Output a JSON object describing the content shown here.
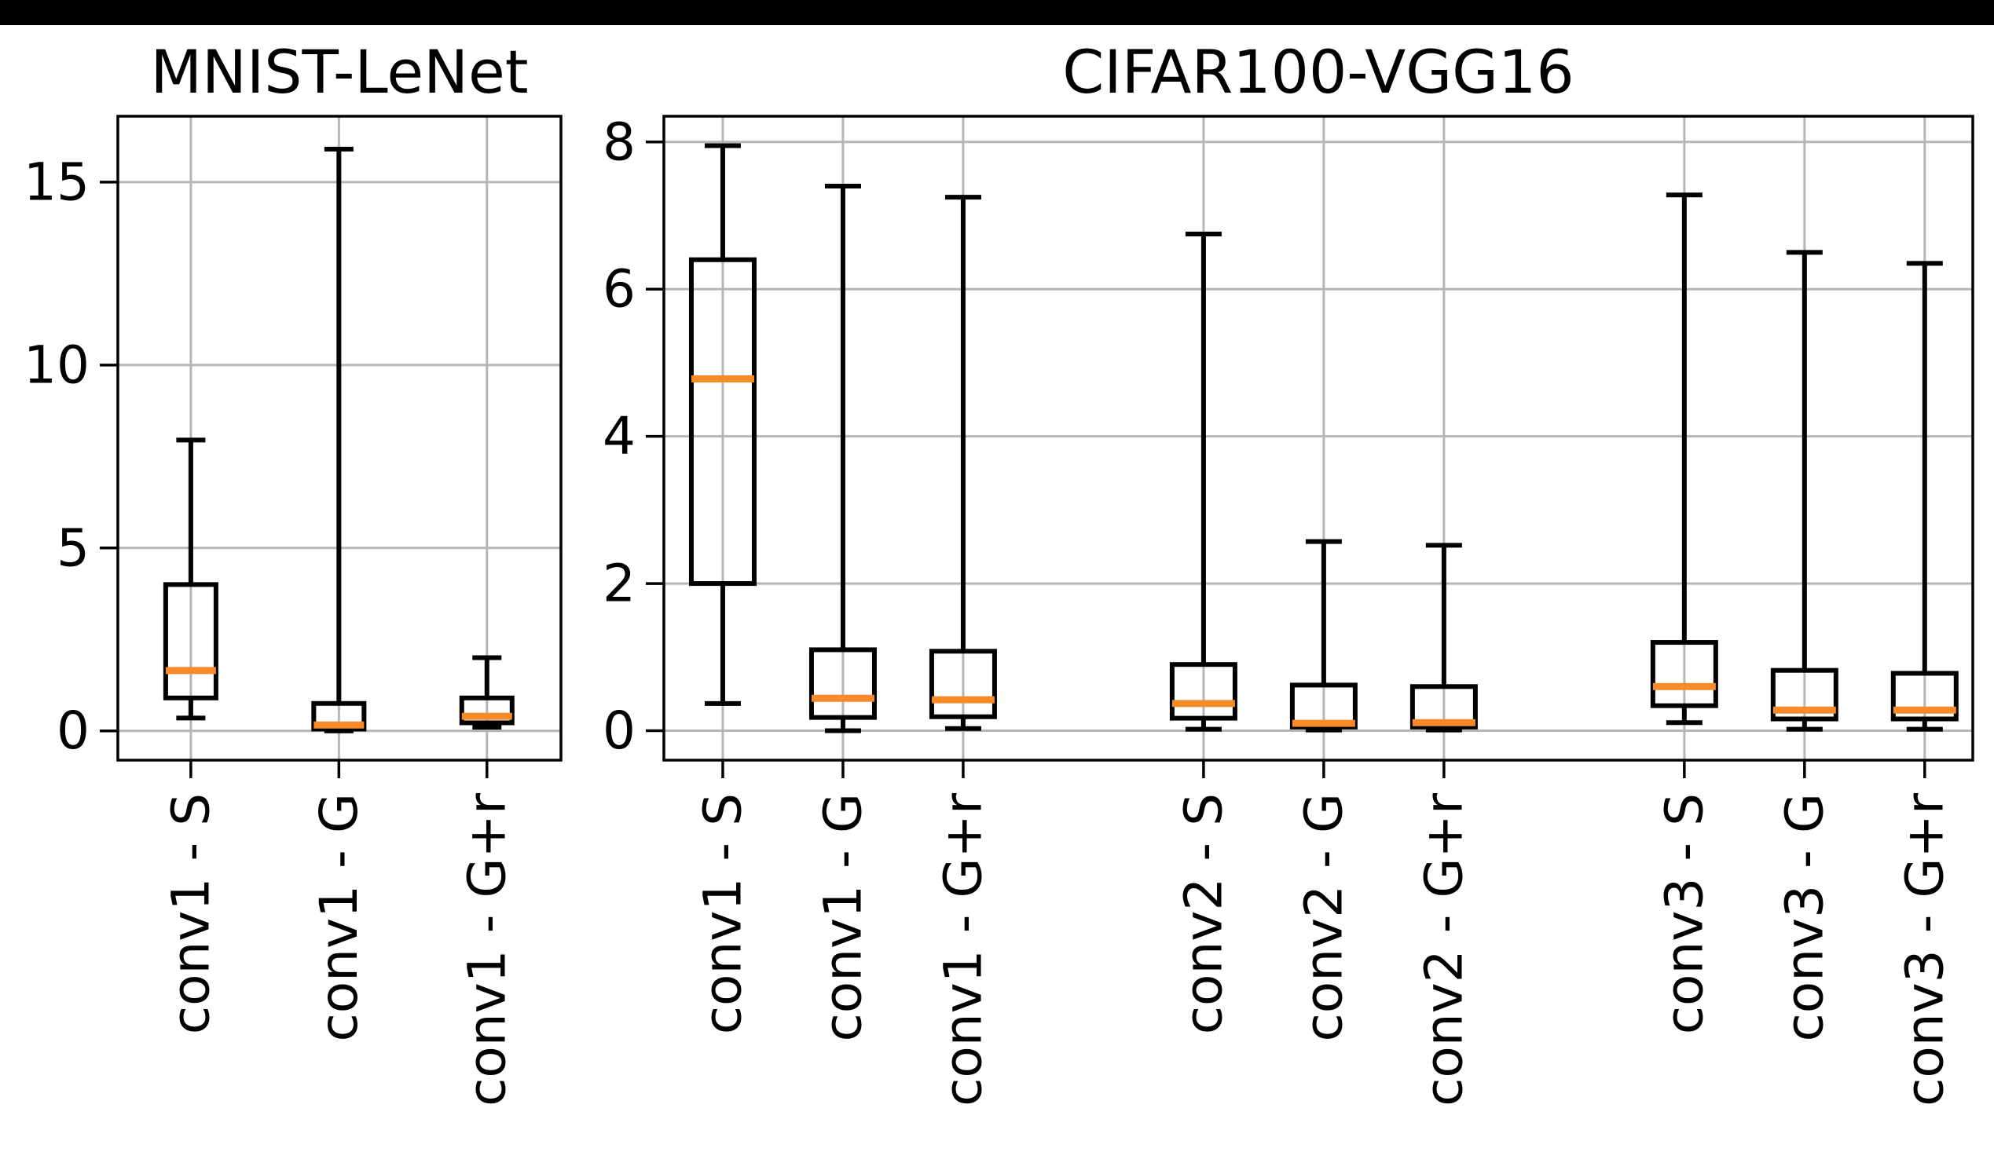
{
  "page": {
    "background": "#ffffff",
    "top_bar_color": "#000000"
  },
  "styles": {
    "grid_color": "#b6b6b6",
    "axis_color": "#000000",
    "box_color": "#000000",
    "median_color": "#f78b29",
    "text_color": "#000000"
  },
  "chart_data": [
    {
      "type": "box",
      "title": "MNIST-LeNet",
      "xlabel": "",
      "ylabel": "",
      "grid": true,
      "legend": "none",
      "yticks": [
        0,
        5,
        10,
        15
      ],
      "ylim": [
        -0.8,
        16.8
      ],
      "xlim": [
        0.507,
        3.5
      ],
      "positions": [
        1,
        2,
        3
      ],
      "categories": [
        "conv1 - S",
        "conv1 - G",
        "conv1 - G+r"
      ],
      "series": [
        {
          "label": "conv1 - S",
          "whislo": 0.35,
          "q1": 0.9,
          "med": 1.65,
          "q3": 4.0,
          "whishi": 7.95
        },
        {
          "label": "conv1 - G",
          "whislo": 0.0,
          "q1": 0.05,
          "med": 0.16,
          "q3": 0.75,
          "whishi": 15.9
        },
        {
          "label": "conv1 - G+r",
          "whislo": 0.1,
          "q1": 0.22,
          "med": 0.4,
          "q3": 0.9,
          "whishi": 2.0
        }
      ]
    },
    {
      "type": "box",
      "title": "CIFAR100-VGG16",
      "xlabel": "",
      "ylabel": "",
      "grid": true,
      "legend": "none",
      "yticks": [
        0,
        2,
        4,
        6,
        8
      ],
      "ylim": [
        -0.4,
        8.35
      ],
      "xlim": [
        0.51,
        11.4
      ],
      "positions": [
        1,
        2,
        3,
        5,
        6,
        7,
        9,
        10,
        11
      ],
      "categories": [
        "conv1 - S",
        "conv1 - G",
        "conv1 - G+r",
        "conv2 - S",
        "conv2 - G",
        "conv2 - G+r",
        "conv3 - S",
        "conv3 - G",
        "conv3 - G+r"
      ],
      "series": [
        {
          "label": "conv1 - S",
          "whislo": 0.37,
          "q1": 2.0,
          "med": 4.78,
          "q3": 6.4,
          "whishi": 7.95
        },
        {
          "label": "conv1 - G",
          "whislo": 0.0,
          "q1": 0.18,
          "med": 0.44,
          "q3": 1.1,
          "whishi": 7.4
        },
        {
          "label": "conv1 - G+r",
          "whislo": 0.03,
          "q1": 0.19,
          "med": 0.42,
          "q3": 1.08,
          "whishi": 7.25
        },
        {
          "label": "conv2 - S",
          "whislo": 0.02,
          "q1": 0.17,
          "med": 0.37,
          "q3": 0.9,
          "whishi": 6.75
        },
        {
          "label": "conv2 - G",
          "whislo": 0.01,
          "q1": 0.05,
          "med": 0.1,
          "q3": 0.62,
          "whishi": 2.57
        },
        {
          "label": "conv2 - G+r",
          "whislo": 0.01,
          "q1": 0.05,
          "med": 0.11,
          "q3": 0.6,
          "whishi": 2.52
        },
        {
          "label": "conv3 - S",
          "whislo": 0.11,
          "q1": 0.34,
          "med": 0.6,
          "q3": 1.2,
          "whishi": 7.28
        },
        {
          "label": "conv3 - G",
          "whislo": 0.02,
          "q1": 0.16,
          "med": 0.28,
          "q3": 0.82,
          "whishi": 6.5
        },
        {
          "label": "conv3 - G+r",
          "whislo": 0.02,
          "q1": 0.16,
          "med": 0.28,
          "q3": 0.78,
          "whishi": 6.35
        }
      ]
    }
  ]
}
